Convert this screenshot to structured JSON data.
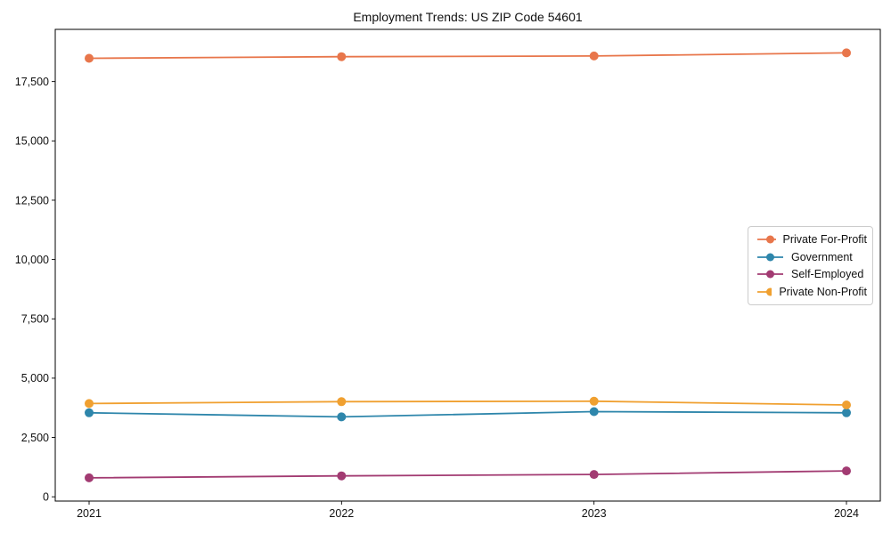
{
  "chart_data": {
    "type": "line",
    "title": "Employment Trends: US ZIP Code 54601",
    "xlabel": "",
    "ylabel": "",
    "x": [
      2021,
      2022,
      2023,
      2024
    ],
    "x_tick_labels": [
      "2021",
      "2022",
      "2023",
      "2024"
    ],
    "y_ticks": [
      0,
      2500,
      5000,
      7500,
      10000,
      12500,
      15000,
      17500
    ],
    "y_tick_labels": [
      "0",
      "2,500",
      "5,000",
      "7,500",
      "10,000",
      "12,500",
      "15,000",
      "17,500"
    ],
    "ylim": [
      -180,
      19700
    ],
    "grid": false,
    "marker": "circle",
    "legend_position": "right",
    "series": [
      {
        "name": "Private For-Profit",
        "color": "#E8764B",
        "values": [
          18480,
          18550,
          18580,
          18710
        ]
      },
      {
        "name": "Government",
        "color": "#2E86AB",
        "values": [
          3540,
          3370,
          3590,
          3540
        ]
      },
      {
        "name": "Self-Employed",
        "color": "#A23B72",
        "values": [
          800,
          880,
          940,
          1090
        ]
      },
      {
        "name": "Private Non-Profit",
        "color": "#F0A030",
        "values": [
          3930,
          4010,
          4030,
          3870
        ]
      }
    ],
    "colors": {
      "spine": "#000000",
      "text": "#111111",
      "legend_border": "#cccccc",
      "background": "#ffffff"
    }
  }
}
